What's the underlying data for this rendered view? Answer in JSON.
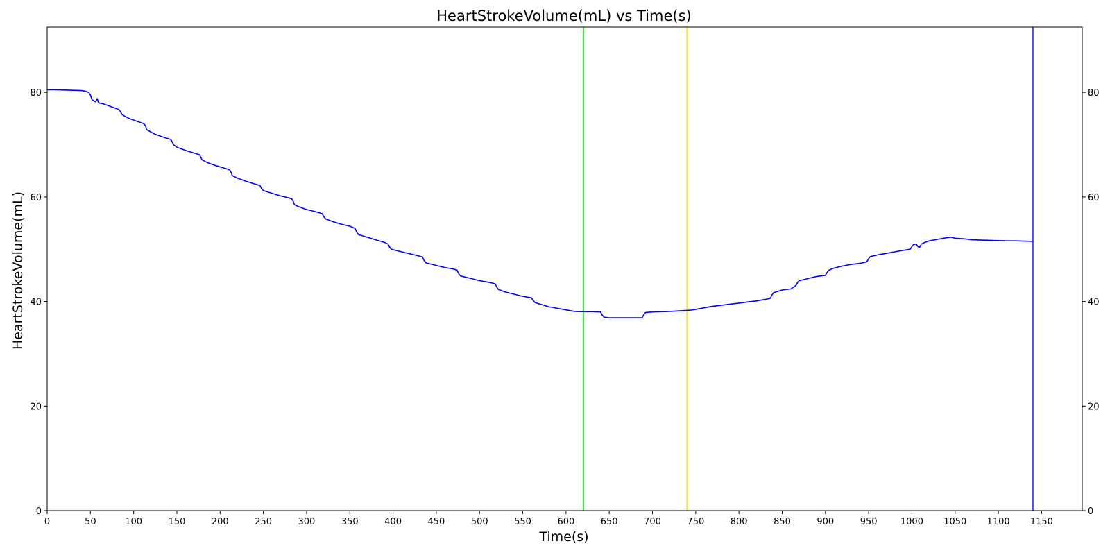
{
  "chart_data": {
    "type": "line",
    "title": "HeartStrokeVolume(mL) vs Time(s)",
    "xlabel": "Time(s)",
    "ylabel": "HeartStrokeVolume(mL)",
    "xlim": [
      0,
      1197
    ],
    "ylim": [
      0,
      92.5
    ],
    "xticks": [
      0,
      50,
      100,
      150,
      200,
      250,
      300,
      350,
      400,
      450,
      500,
      550,
      600,
      650,
      700,
      750,
      800,
      850,
      900,
      950,
      1000,
      1050,
      1100,
      1150
    ],
    "yticks": [
      0,
      20,
      40,
      60,
      80
    ],
    "right_axis_ticks": true,
    "grid": false,
    "series": [
      {
        "color": "#0000ff",
        "x": [
          0,
          10,
          20,
          30,
          40,
          45,
          48,
          50,
          51,
          52,
          54,
          56,
          57,
          58,
          59,
          60,
          65,
          70,
          75,
          80,
          83,
          85,
          86,
          88,
          95,
          105,
          112,
          114,
          115,
          118,
          125,
          135,
          143,
          145,
          146,
          150,
          160,
          170,
          176,
          178,
          179,
          185,
          195,
          205,
          211,
          213,
          214,
          220,
          230,
          240,
          246,
          248,
          250,
          260,
          270,
          280,
          283,
          285,
          286,
          290,
          300,
          310,
          318,
          320,
          322,
          330,
          340,
          350,
          356,
          358,
          360,
          370,
          380,
          390,
          394,
          396,
          398,
          410,
          420,
          430,
          434,
          436,
          438,
          450,
          460,
          470,
          474,
          476,
          478,
          490,
          500,
          510,
          518,
          520,
          522,
          530,
          540,
          550,
          560,
          562,
          564,
          570,
          580,
          590,
          600,
          610,
          620,
          630,
          640,
          642,
          644,
          650,
          660,
          670,
          680,
          688,
          690,
          692,
          700,
          710,
          720,
          730,
          740,
          745,
          750,
          760,
          770,
          780,
          790,
          800,
          810,
          820,
          830,
          836,
          838,
          840,
          850,
          860,
          866,
          868,
          870,
          880,
          890,
          900,
          902,
          904,
          910,
          920,
          930,
          940,
          948,
          950,
          952,
          960,
          970,
          980,
          990,
          998,
          1000,
          1002,
          1005,
          1007,
          1009,
          1011,
          1015,
          1020,
          1030,
          1040,
          1045,
          1050,
          1060,
          1070,
          1080,
          1090,
          1100,
          1110,
          1120,
          1130,
          1140
        ],
        "y": [
          80.5,
          80.5,
          80.45,
          80.4,
          80.35,
          80.2,
          80.0,
          79.5,
          79.0,
          78.6,
          78.4,
          78.2,
          78.5,
          78.8,
          78.2,
          78.0,
          77.8,
          77.5,
          77.2,
          76.9,
          76.7,
          76.3,
          75.9,
          75.6,
          75.0,
          74.4,
          74.0,
          73.5,
          72.9,
          72.6,
          72.0,
          71.4,
          71.0,
          70.4,
          70.0,
          69.5,
          68.9,
          68.4,
          68.1,
          67.5,
          67.1,
          66.6,
          66.0,
          65.5,
          65.2,
          64.6,
          64.1,
          63.6,
          63.0,
          62.5,
          62.2,
          61.6,
          61.2,
          60.7,
          60.2,
          59.8,
          59.6,
          59.0,
          58.5,
          58.2,
          57.6,
          57.2,
          56.8,
          56.2,
          55.8,
          55.3,
          54.8,
          54.4,
          54.0,
          53.3,
          52.8,
          52.3,
          51.8,
          51.3,
          51.0,
          50.4,
          50.0,
          49.5,
          49.1,
          48.7,
          48.5,
          47.8,
          47.4,
          46.9,
          46.5,
          46.2,
          46.0,
          45.3,
          44.9,
          44.4,
          44.0,
          43.7,
          43.4,
          42.7,
          42.3,
          41.8,
          41.4,
          41.0,
          40.7,
          40.2,
          39.8,
          39.5,
          39.0,
          38.7,
          38.4,
          38.1,
          38.05,
          38.05,
          38.0,
          37.4,
          37.0,
          36.9,
          36.9,
          36.9,
          36.9,
          36.9,
          37.5,
          37.9,
          38.0,
          38.05,
          38.1,
          38.2,
          38.3,
          38.35,
          38.5,
          38.8,
          39.1,
          39.3,
          39.5,
          39.7,
          39.9,
          40.1,
          40.4,
          40.6,
          41.2,
          41.7,
          42.2,
          42.4,
          43.1,
          43.7,
          44.0,
          44.4,
          44.8,
          45.0,
          45.6,
          46.0,
          46.4,
          46.8,
          47.1,
          47.3,
          47.6,
          48.2,
          48.6,
          48.9,
          49.2,
          49.5,
          49.8,
          50.0,
          50.5,
          50.9,
          51.0,
          50.5,
          50.4,
          51.0,
          51.3,
          51.6,
          51.9,
          52.2,
          52.3,
          52.1,
          52.0,
          51.8,
          51.75,
          51.7,
          51.65,
          51.6,
          51.6,
          51.55,
          51.5
        ]
      }
    ],
    "vlines": [
      {
        "x": 620,
        "color": "#00dd00"
      },
      {
        "x": 740,
        "color": "#eeee00"
      },
      {
        "x": 1140,
        "color": "#4040ff"
      }
    ]
  }
}
